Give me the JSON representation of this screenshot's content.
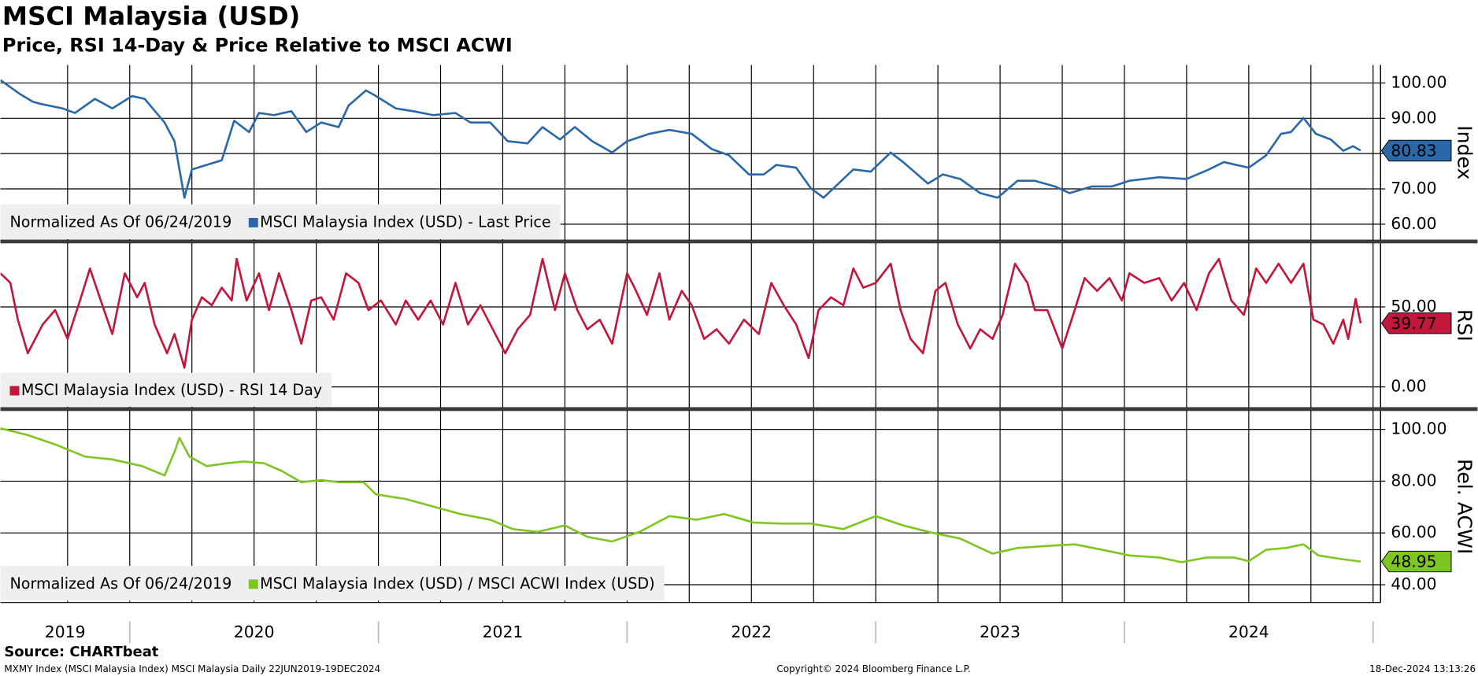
{
  "title": "MSCI Malaysia (USD)",
  "subtitle": "Price, RSI 14-Day & Price Relative to MSCI ACWI",
  "source": "Source: CHARTbeat",
  "footer_left": "MXMY Index (MSCI Malaysia Index) MSCI Malaysia  Daily 22JUN2019-19DEC2024",
  "footer_center": "Copyright© 2024 Bloomberg Finance L.P.",
  "footer_right": "18-Dec-2024 13:13:26",
  "x_axis": {
    "xlim": [
      2019.48,
      2025.03
    ],
    "xticks": [
      2019.75,
      2020,
      2020.25,
      2020.5,
      2020.75,
      2021,
      2021.25,
      2021.5,
      2021.75,
      2022,
      2022.25,
      2022.5,
      2022.75,
      2023,
      2023.25,
      2023.5,
      2023.75,
      2024,
      2024.25,
      2024.5,
      2024.75,
      2025
    ],
    "year_labels": [
      2019,
      2020,
      2021,
      2022,
      2023,
      2024
    ]
  },
  "chart_data": [
    {
      "type": "line",
      "ylabel": "Index",
      "note": "Normalized As Of 06/24/2019",
      "ylim": [
        55.5,
        105.1
      ],
      "yticks": [
        {
          "value": 60,
          "label": "60.00"
        },
        {
          "value": 70,
          "label": "70.00"
        },
        {
          "value": 80,
          "label": "80.00"
        },
        {
          "value": 90,
          "label": "90.00"
        },
        {
          "value": 100,
          "label": "100.00"
        }
      ],
      "grid": true,
      "last_value": 80.83,
      "x": [
        2019.48,
        2019.56,
        2019.61,
        2019.64,
        2019.73,
        2019.78,
        2019.86,
        2019.93,
        2020.01,
        2020.06,
        2020.14,
        2020.18,
        2020.22,
        2020.25,
        2020.31,
        2020.37,
        2020.42,
        2020.48,
        2020.52,
        2020.58,
        2020.65,
        2020.71,
        2020.77,
        2020.84,
        2020.88,
        2020.95,
        2020.99,
        2021.07,
        2021.14,
        2021.22,
        2021.31,
        2021.37,
        2021.45,
        2021.52,
        2021.6,
        2021.66,
        2021.73,
        2021.79,
        2021.86,
        2021.94,
        2022.0,
        2022.09,
        2022.17,
        2022.26,
        2022.34,
        2022.41,
        2022.49,
        2022.55,
        2022.6,
        2022.68,
        2022.74,
        2022.79,
        2022.85,
        2022.91,
        2022.98,
        2023.06,
        2023.11,
        2023.21,
        2023.27,
        2023.34,
        2023.42,
        2023.49,
        2023.57,
        2023.64,
        2023.72,
        2023.78,
        2023.87,
        2023.95,
        2024.02,
        2024.14,
        2024.25,
        2024.34,
        2024.4,
        2024.5,
        2024.57,
        2024.63,
        2024.67,
        2024.72,
        2024.77,
        2024.83,
        2024.88,
        2024.92,
        2024.95
      ],
      "series": [
        {
          "name": "MSCI Malaysia Index (USD) - Last Price",
          "color": "#2b68a8",
          "values": [
            100.8,
            96.8,
            94.7,
            94.1,
            92.8,
            91.5,
            95.5,
            92.8,
            96.3,
            95.5,
            88.8,
            83.5,
            67.5,
            75.5,
            76.8,
            78.1,
            89.3,
            86.1,
            91.5,
            90.9,
            92.0,
            86.1,
            88.8,
            87.5,
            93.6,
            97.9,
            96.3,
            92.8,
            92.0,
            90.9,
            91.5,
            88.8,
            88.8,
            83.5,
            82.9,
            87.5,
            84.0,
            87.5,
            83.5,
            80.3,
            83.5,
            85.6,
            86.7,
            85.6,
            81.3,
            79.5,
            74.1,
            74.1,
            76.8,
            76.0,
            70.1,
            67.5,
            71.5,
            75.5,
            74.9,
            80.3,
            77.6,
            71.5,
            74.1,
            72.8,
            68.8,
            67.5,
            72.3,
            72.3,
            70.7,
            68.8,
            70.7,
            70.7,
            72.3,
            73.3,
            72.8,
            75.5,
            77.6,
            76.0,
            79.5,
            85.6,
            86.1,
            90.1,
            85.6,
            84.0,
            80.8,
            82.1,
            80.83
          ]
        }
      ]
    },
    {
      "type": "line",
      "ylabel": "RSI",
      "ylim": [
        -13,
        90
      ],
      "yticks": [
        {
          "value": 0,
          "label": "0.00"
        },
        {
          "value": 50,
          "label": "50.00"
        }
      ],
      "grid": true,
      "last_value": 39.77,
      "x": [
        2019.48,
        2019.52,
        2019.55,
        2019.59,
        2019.65,
        2019.7,
        2019.75,
        2019.8,
        2019.84,
        2019.89,
        2019.93,
        2019.98,
        2020.03,
        2020.06,
        2020.1,
        2020.15,
        2020.18,
        2020.22,
        2020.25,
        2020.29,
        2020.33,
        2020.37,
        2020.41,
        2020.43,
        2020.47,
        2020.52,
        2020.56,
        2020.6,
        2020.65,
        2020.69,
        2020.73,
        2020.77,
        2020.82,
        2020.87,
        2020.92,
        2020.96,
        2021.01,
        2021.07,
        2021.11,
        2021.16,
        2021.21,
        2021.26,
        2021.31,
        2021.36,
        2021.41,
        2021.45,
        2021.51,
        2021.56,
        2021.61,
        2021.66,
        2021.71,
        2021.75,
        2021.8,
        2021.84,
        2021.89,
        2021.94,
        2022.0,
        2022.03,
        2022.08,
        2022.13,
        2022.17,
        2022.22,
        2022.26,
        2022.31,
        2022.36,
        2022.41,
        2022.47,
        2022.53,
        2022.58,
        2022.63,
        2022.68,
        2022.73,
        2022.77,
        2022.82,
        2022.87,
        2022.91,
        2022.95,
        2023.0,
        2023.06,
        2023.1,
        2023.14,
        2023.19,
        2023.24,
        2023.28,
        2023.33,
        2023.38,
        2023.42,
        2023.47,
        2023.51,
        2023.56,
        2023.61,
        2023.64,
        2023.69,
        2023.75,
        2023.8,
        2023.84,
        2023.89,
        2023.94,
        2023.99,
        2024.02,
        2024.08,
        2024.14,
        2024.19,
        2024.24,
        2024.29,
        2024.34,
        2024.38,
        2024.43,
        2024.48,
        2024.53,
        2024.57,
        2024.62,
        2024.67,
        2024.72,
        2024.76,
        2024.8,
        2024.84,
        2024.88,
        2024.9,
        2024.93,
        2024.95
      ],
      "series": [
        {
          "name": "MSCI Malaysia Index (USD) - RSI 14 Day",
          "color": "#c2163b",
          "values": [
            71,
            65,
            42,
            21,
            39,
            48,
            30,
            54,
            74,
            51,
            33,
            71,
            56,
            65,
            39,
            21,
            33,
            12,
            42,
            56,
            51,
            62,
            54,
            80,
            54,
            71,
            48,
            71,
            48,
            27,
            54,
            56,
            42,
            71,
            65,
            48,
            54,
            39,
            54,
            42,
            54,
            39,
            65,
            39,
            51,
            39,
            21,
            36,
            45,
            80,
            48,
            71,
            48,
            36,
            42,
            27,
            71,
            62,
            45,
            71,
            42,
            60,
            51,
            30,
            36,
            27,
            42,
            33,
            65,
            51,
            39,
            18,
            48,
            56,
            51,
            74,
            62,
            65,
            77,
            48,
            30,
            21,
            60,
            65,
            39,
            24,
            36,
            30,
            45,
            77,
            65,
            48,
            48,
            24,
            48,
            68,
            60,
            68,
            54,
            71,
            65,
            68,
            54,
            65,
            48,
            71,
            80,
            54,
            45,
            74,
            65,
            77,
            65,
            77,
            42,
            39,
            27,
            42,
            30,
            55,
            39.77
          ]
        }
      ]
    },
    {
      "type": "line",
      "ylabel": "Rel. ACWI",
      "note": "Normalized As Of 06/24/2019",
      "ylim": [
        33.1,
        107.3
      ],
      "yticks": [
        {
          "value": 40,
          "label": "40.00"
        },
        {
          "value": 60,
          "label": "60.00"
        },
        {
          "value": 80,
          "label": "80.00"
        },
        {
          "value": 100,
          "label": "100.00"
        }
      ],
      "grid": true,
      "last_value": 48.95,
      "x": [
        2019.48,
        2019.59,
        2019.7,
        2019.82,
        2019.93,
        2020.05,
        2020.14,
        2020.18,
        2020.2,
        2020.24,
        2020.31,
        2020.39,
        2020.46,
        2020.54,
        2020.61,
        2020.69,
        2020.77,
        2020.84,
        2020.94,
        2020.99,
        2021.11,
        2021.22,
        2021.33,
        2021.45,
        2021.54,
        2021.64,
        2021.75,
        2021.84,
        2021.94,
        2022.05,
        2022.17,
        2022.28,
        2022.39,
        2022.51,
        2022.62,
        2022.74,
        2022.87,
        2023.0,
        2023.11,
        2023.23,
        2023.34,
        2023.47,
        2023.57,
        2023.68,
        2023.8,
        2023.91,
        2024.02,
        2024.14,
        2024.23,
        2024.33,
        2024.44,
        2024.5,
        2024.57,
        2024.65,
        2024.72,
        2024.78,
        2024.88,
        2024.95
      ],
      "series": [
        {
          "name": "MSCI Malaysia Index (USD) / MSCI ACWI Index (USD)",
          "color": "#7ec622",
          "values": [
            100.4,
            97.8,
            94.2,
            89.5,
            88.4,
            85.8,
            82.2,
            91.3,
            96.7,
            89.5,
            85.8,
            86.9,
            87.6,
            86.9,
            84.0,
            79.6,
            80.4,
            79.6,
            79.6,
            74.9,
            73.1,
            70.2,
            67.3,
            65.1,
            61.5,
            60.4,
            62.9,
            58.5,
            56.7,
            60.4,
            66.5,
            65.1,
            67.3,
            64.0,
            63.6,
            63.6,
            61.5,
            66.5,
            62.9,
            60.0,
            57.8,
            52.0,
            54.2,
            54.9,
            55.6,
            53.5,
            51.3,
            50.5,
            48.7,
            50.5,
            50.5,
            49.1,
            53.5,
            54.2,
            55.6,
            51.3,
            49.8,
            48.95
          ]
        }
      ]
    }
  ]
}
